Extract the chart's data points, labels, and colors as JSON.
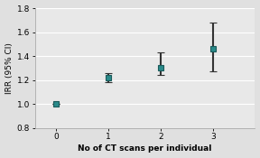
{
  "x": [
    0,
    1,
    2,
    3
  ],
  "y": [
    1.0,
    1.22,
    1.3,
    1.46
  ],
  "yerr_low": [
    0.0,
    0.04,
    0.06,
    0.19
  ],
  "yerr_high": [
    0.0,
    0.04,
    0.13,
    0.22
  ],
  "marker_color": "#2a8a8a",
  "marker_edge_color": "#1a5a5a",
  "errorbar_color": "#333333",
  "bg_color": "#e0e0e0",
  "plot_bg_color": "#e8e8e8",
  "ylabel": "IRR (95% CI)",
  "xlabel": "No of CT scans per individual",
  "ylim": [
    0.8,
    1.8
  ],
  "xlim": [
    -0.4,
    3.8
  ],
  "yticks": [
    0.8,
    1.0,
    1.2,
    1.4,
    1.6,
    1.8
  ],
  "xticks": [
    0,
    1,
    2,
    3
  ],
  "marker_size": 5,
  "capsize": 3,
  "linewidth": 1.5,
  "capthick": 1.5
}
